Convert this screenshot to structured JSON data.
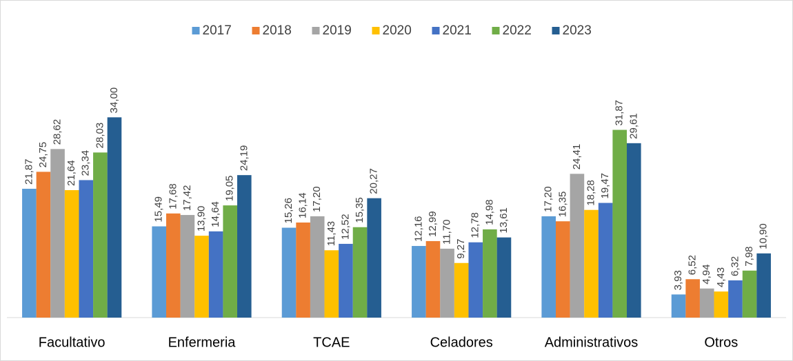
{
  "chart_data": {
    "type": "bar",
    "categories": [
      "Facultativo",
      "Enfermeria",
      "TCAE",
      "Celadores",
      "Administrativos",
      "Otros"
    ],
    "ylim": [
      0,
      40
    ],
    "series": [
      {
        "name": "2017",
        "color": "#5b9bd5",
        "values": [
          21.87,
          15.49,
          15.26,
          12.16,
          17.2,
          3.93
        ],
        "value_labels": [
          "21,87",
          "15,49",
          "15,26",
          "12,16",
          "17,20",
          "3,93"
        ]
      },
      {
        "name": "2018",
        "color": "#ed7d31",
        "values": [
          24.75,
          17.68,
          16.14,
          12.99,
          16.35,
          6.52
        ],
        "value_labels": [
          "24,75",
          "17,68",
          "16,14",
          "12,99",
          "16,35",
          "6,52"
        ]
      },
      {
        "name": "2019",
        "color": "#a5a5a5",
        "values": [
          28.62,
          17.42,
          17.2,
          11.7,
          24.41,
          4.94
        ],
        "value_labels": [
          "28,62",
          "17,42",
          "17,20",
          "11,70",
          "24,41",
          "4,94"
        ]
      },
      {
        "name": "2020",
        "color": "#ffc000",
        "values": [
          21.64,
          13.9,
          11.43,
          9.27,
          18.28,
          4.43
        ],
        "value_labels": [
          "21,64",
          "13,90",
          "11,43",
          "9,27",
          "18,28",
          "4,43"
        ]
      },
      {
        "name": "2021",
        "color": "#4472c4",
        "values": [
          23.34,
          14.64,
          12.52,
          12.78,
          19.47,
          6.32
        ],
        "value_labels": [
          "23,34",
          "14,64",
          "12,52",
          "12,78",
          "19,47",
          "6,32"
        ]
      },
      {
        "name": "2022",
        "color": "#70ad47",
        "values": [
          28.03,
          19.05,
          15.35,
          14.98,
          31.87,
          7.98
        ],
        "value_labels": [
          "28,03",
          "19,05",
          "15,35",
          "14,98",
          "31,87",
          "7,98"
        ]
      },
      {
        "name": "2023",
        "color": "#255e91",
        "values": [
          34.0,
          24.19,
          20.27,
          13.61,
          29.61,
          10.9
        ],
        "value_labels": [
          "34,00",
          "24,19",
          "20,27",
          "13,61",
          "29,61",
          "10,90"
        ]
      }
    ]
  }
}
